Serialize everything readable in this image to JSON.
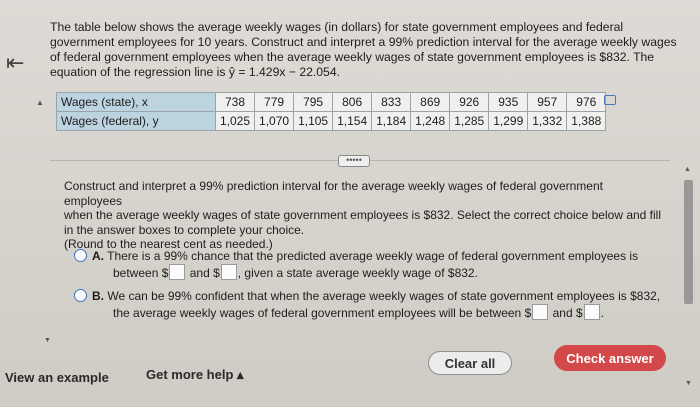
{
  "nav": {
    "back_glyph": "⇤"
  },
  "problem": {
    "line1": "The table below shows the average weekly wages (in dollars) for state government employees and federal",
    "line2": "government employees for 10 years. Construct and interpret a 99% prediction interval for the average weekly wages",
    "line3": "of federal government employees when the average weekly wages of state government employees is $832. The",
    "line4": "equation of the regression line is ŷ = 1.429x − 22.054."
  },
  "table": {
    "row_labels": [
      "Wages (state), x",
      "Wages (federal), y"
    ],
    "state": [
      "738",
      "779",
      "795",
      "806",
      "833",
      "869",
      "926",
      "935",
      "957",
      "976"
    ],
    "federal": [
      "1,025",
      "1,070",
      "1,105",
      "1,154",
      "1,184",
      "1,248",
      "1,285",
      "1,299",
      "1,332",
      "1,388"
    ]
  },
  "more_label": "•••••",
  "question": {
    "line1": "Construct and interpret a 99% prediction interval for the average weekly wages of federal government employees",
    "line2": "when the average weekly wages of state government employees is $832. Select the correct choice below and fill",
    "line3": "in the answer boxes to complete your choice.",
    "line4": "(Round to the nearest cent as needed.)"
  },
  "choices": {
    "a": {
      "letter": "A.",
      "t1": "There is a 99% chance that the predicted average weekly wage of federal government employees is",
      "t2": "between $",
      "t3": "and $",
      "t4": ", given a state average weekly wage of $832."
    },
    "b": {
      "letter": "B.",
      "t1": "We can be 99% confident that when the average weekly wages of state government employees is $832,",
      "t2": "the average weekly wages of federal government employees will be between $",
      "t3": "and $",
      "t4": "."
    }
  },
  "footer": {
    "view_example": "View an example",
    "get_help": "Get more help ▴",
    "clear_all": "Clear all",
    "check_answer": "Check answer"
  },
  "colors": {
    "accent_red": "#d3494a",
    "table_header_blue": "#bcd3e0",
    "radio_blue": "#3c78c8"
  }
}
